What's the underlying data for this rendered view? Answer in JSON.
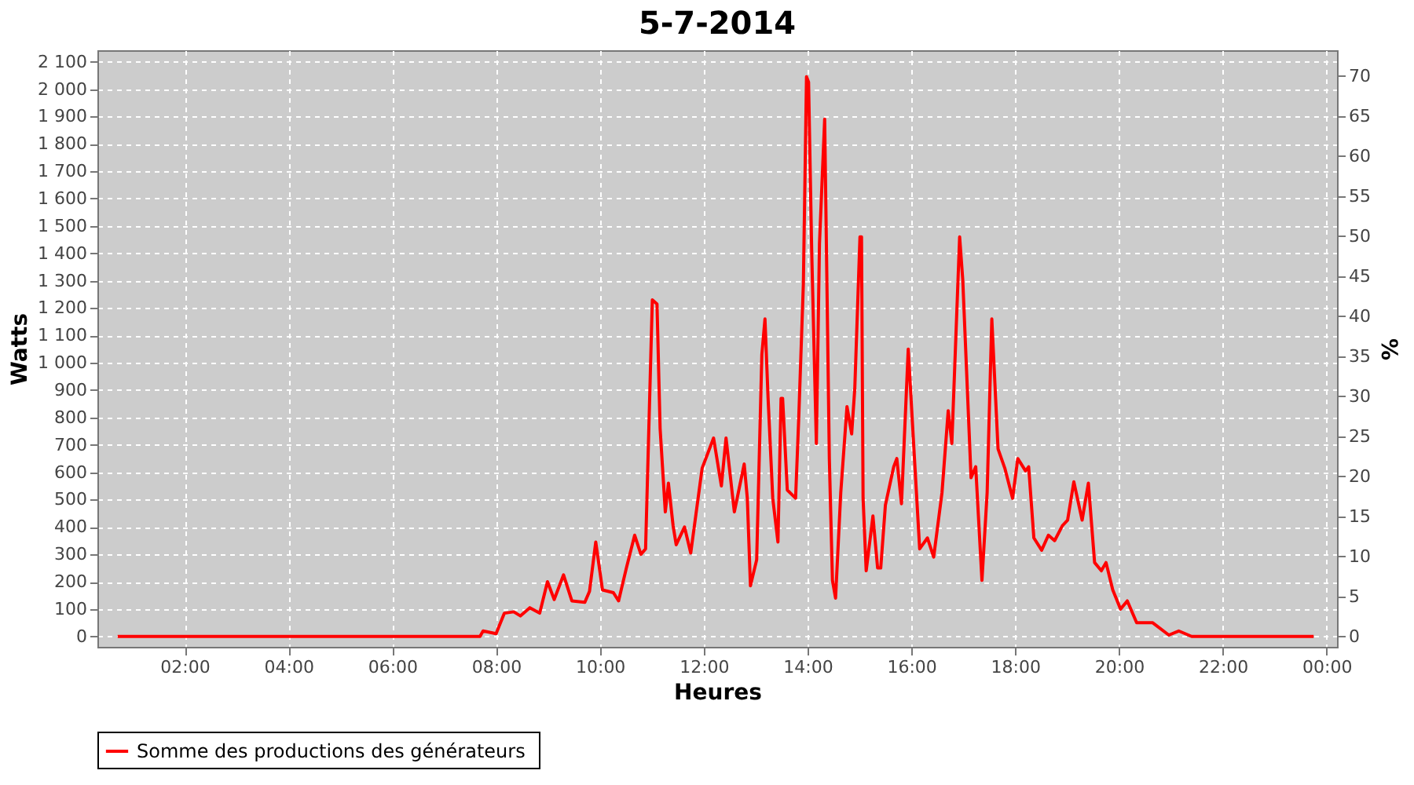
{
  "chart_data": {
    "type": "line",
    "title": "5-7-2014",
    "xlabel": "Heures",
    "ylabel": "Watts",
    "y2label": "%",
    "x": [
      0.71,
      7.22,
      7.69,
      7.75,
      8.0,
      8.16,
      8.34,
      8.47,
      8.65,
      8.84,
      8.99,
      9.12,
      9.3,
      9.46,
      9.71,
      9.8,
      9.92,
      10.05,
      10.26,
      10.36,
      10.51,
      10.67,
      10.79,
      10.88,
      11.01,
      11.1,
      11.16,
      11.26,
      11.32,
      11.41,
      11.47,
      11.63,
      11.75,
      11.97,
      12.19,
      12.34,
      12.43,
      12.59,
      12.78,
      12.84,
      12.9,
      13.02,
      13.12,
      13.18,
      13.24,
      13.33,
      13.43,
      13.49,
      13.52,
      13.61,
      13.77,
      13.83,
      13.92,
      13.98,
      14.02,
      14.08,
      14.17,
      14.23,
      14.33,
      14.42,
      14.48,
      14.54,
      14.64,
      14.76,
      14.85,
      14.91,
      15.01,
      15.04,
      15.07,
      15.13,
      15.26,
      15.35,
      15.41,
      15.5,
      15.66,
      15.72,
      15.81,
      15.94,
      16.06,
      16.16,
      16.31,
      16.43,
      16.59,
      16.71,
      16.78,
      16.93,
      16.99,
      17.15,
      17.24,
      17.36,
      17.46,
      17.55,
      17.67,
      17.8,
      17.95,
      18.05,
      18.2,
      18.26,
      18.36,
      18.51,
      18.64,
      18.76,
      18.91,
      19.01,
      19.13,
      19.29,
      19.41,
      19.53,
      19.66,
      19.75,
      19.88,
      20.03,
      20.16,
      20.34,
      20.65,
      20.96,
      21.15,
      21.4,
      23.75
    ],
    "series": [
      {
        "name": "Somme des productions des  générateurs",
        "color": "#ff0000",
        "values": [
          0,
          0,
          0,
          20,
          10,
          85,
          90,
          75,
          105,
          85,
          200,
          135,
          225,
          130,
          125,
          165,
          345,
          170,
          160,
          130,
          250,
          370,
          300,
          320,
          1230,
          1215,
          760,
          455,
          560,
          405,
          335,
          400,
          305,
          615,
          725,
          550,
          725,
          455,
          630,
          505,
          185,
          280,
          1030,
          1160,
          870,
          505,
          345,
          870,
          870,
          535,
          505,
          795,
          1290,
          2045,
          2025,
          1410,
          705,
          1435,
          1890,
          650,
          205,
          140,
          525,
          840,
          740,
          905,
          1460,
          1460,
          505,
          240,
          440,
          250,
          250,
          480,
          620,
          650,
          485,
          1050,
          650,
          320,
          360,
          290,
          525,
          825,
          705,
          1460,
          1305,
          580,
          620,
          205,
          525,
          1160,
          685,
          615,
          505,
          650,
          605,
          620,
          360,
          315,
          370,
          350,
          405,
          425,
          565,
          425,
          560,
          270,
          240,
          270,
          170,
          100,
          130,
          50,
          50,
          5,
          20,
          0,
          0
        ]
      }
    ],
    "xlim": [
      0.32,
      24.2
    ],
    "ylim": [
      -38,
      2142
    ],
    "y2lim": [
      -1.3,
      73.2
    ],
    "xticks": [
      {
        "value": 2,
        "label": "02:00"
      },
      {
        "value": 4,
        "label": "04:00"
      },
      {
        "value": 6,
        "label": "06:00"
      },
      {
        "value": 8,
        "label": "08:00"
      },
      {
        "value": 10,
        "label": "10:00"
      },
      {
        "value": 12,
        "label": "12:00"
      },
      {
        "value": 14,
        "label": "14:00"
      },
      {
        "value": 16,
        "label": "16:00"
      },
      {
        "value": 18,
        "label": "18:00"
      },
      {
        "value": 20,
        "label": "20:00"
      },
      {
        "value": 22,
        "label": "22:00"
      },
      {
        "value": 24,
        "label": "00:00"
      }
    ],
    "yticks": [
      0,
      100,
      200,
      300,
      400,
      500,
      600,
      700,
      800,
      900,
      {
        "value": 1000,
        "label": "1 000"
      },
      {
        "value": 1100,
        "label": "1 100"
      },
      {
        "value": 1200,
        "label": "1 200"
      },
      {
        "value": 1300,
        "label": "1 300"
      },
      {
        "value": 1400,
        "label": "1 400"
      },
      {
        "value": 1500,
        "label": "1 500"
      },
      {
        "value": 1600,
        "label": "1 600"
      },
      {
        "value": 1700,
        "label": "1 700"
      },
      {
        "value": 1800,
        "label": "1 800"
      },
      {
        "value": 1900,
        "label": "1 900"
      },
      {
        "value": 2000,
        "label": "2 000"
      },
      {
        "value": 2100,
        "label": "2 100"
      }
    ],
    "y2ticks": [
      0,
      5,
      10,
      15,
      20,
      25,
      30,
      35,
      40,
      45,
      50,
      55,
      60,
      65,
      70
    ],
    "grid": true,
    "legend": "bottom",
    "marker": "none",
    "line_style": "solid"
  }
}
